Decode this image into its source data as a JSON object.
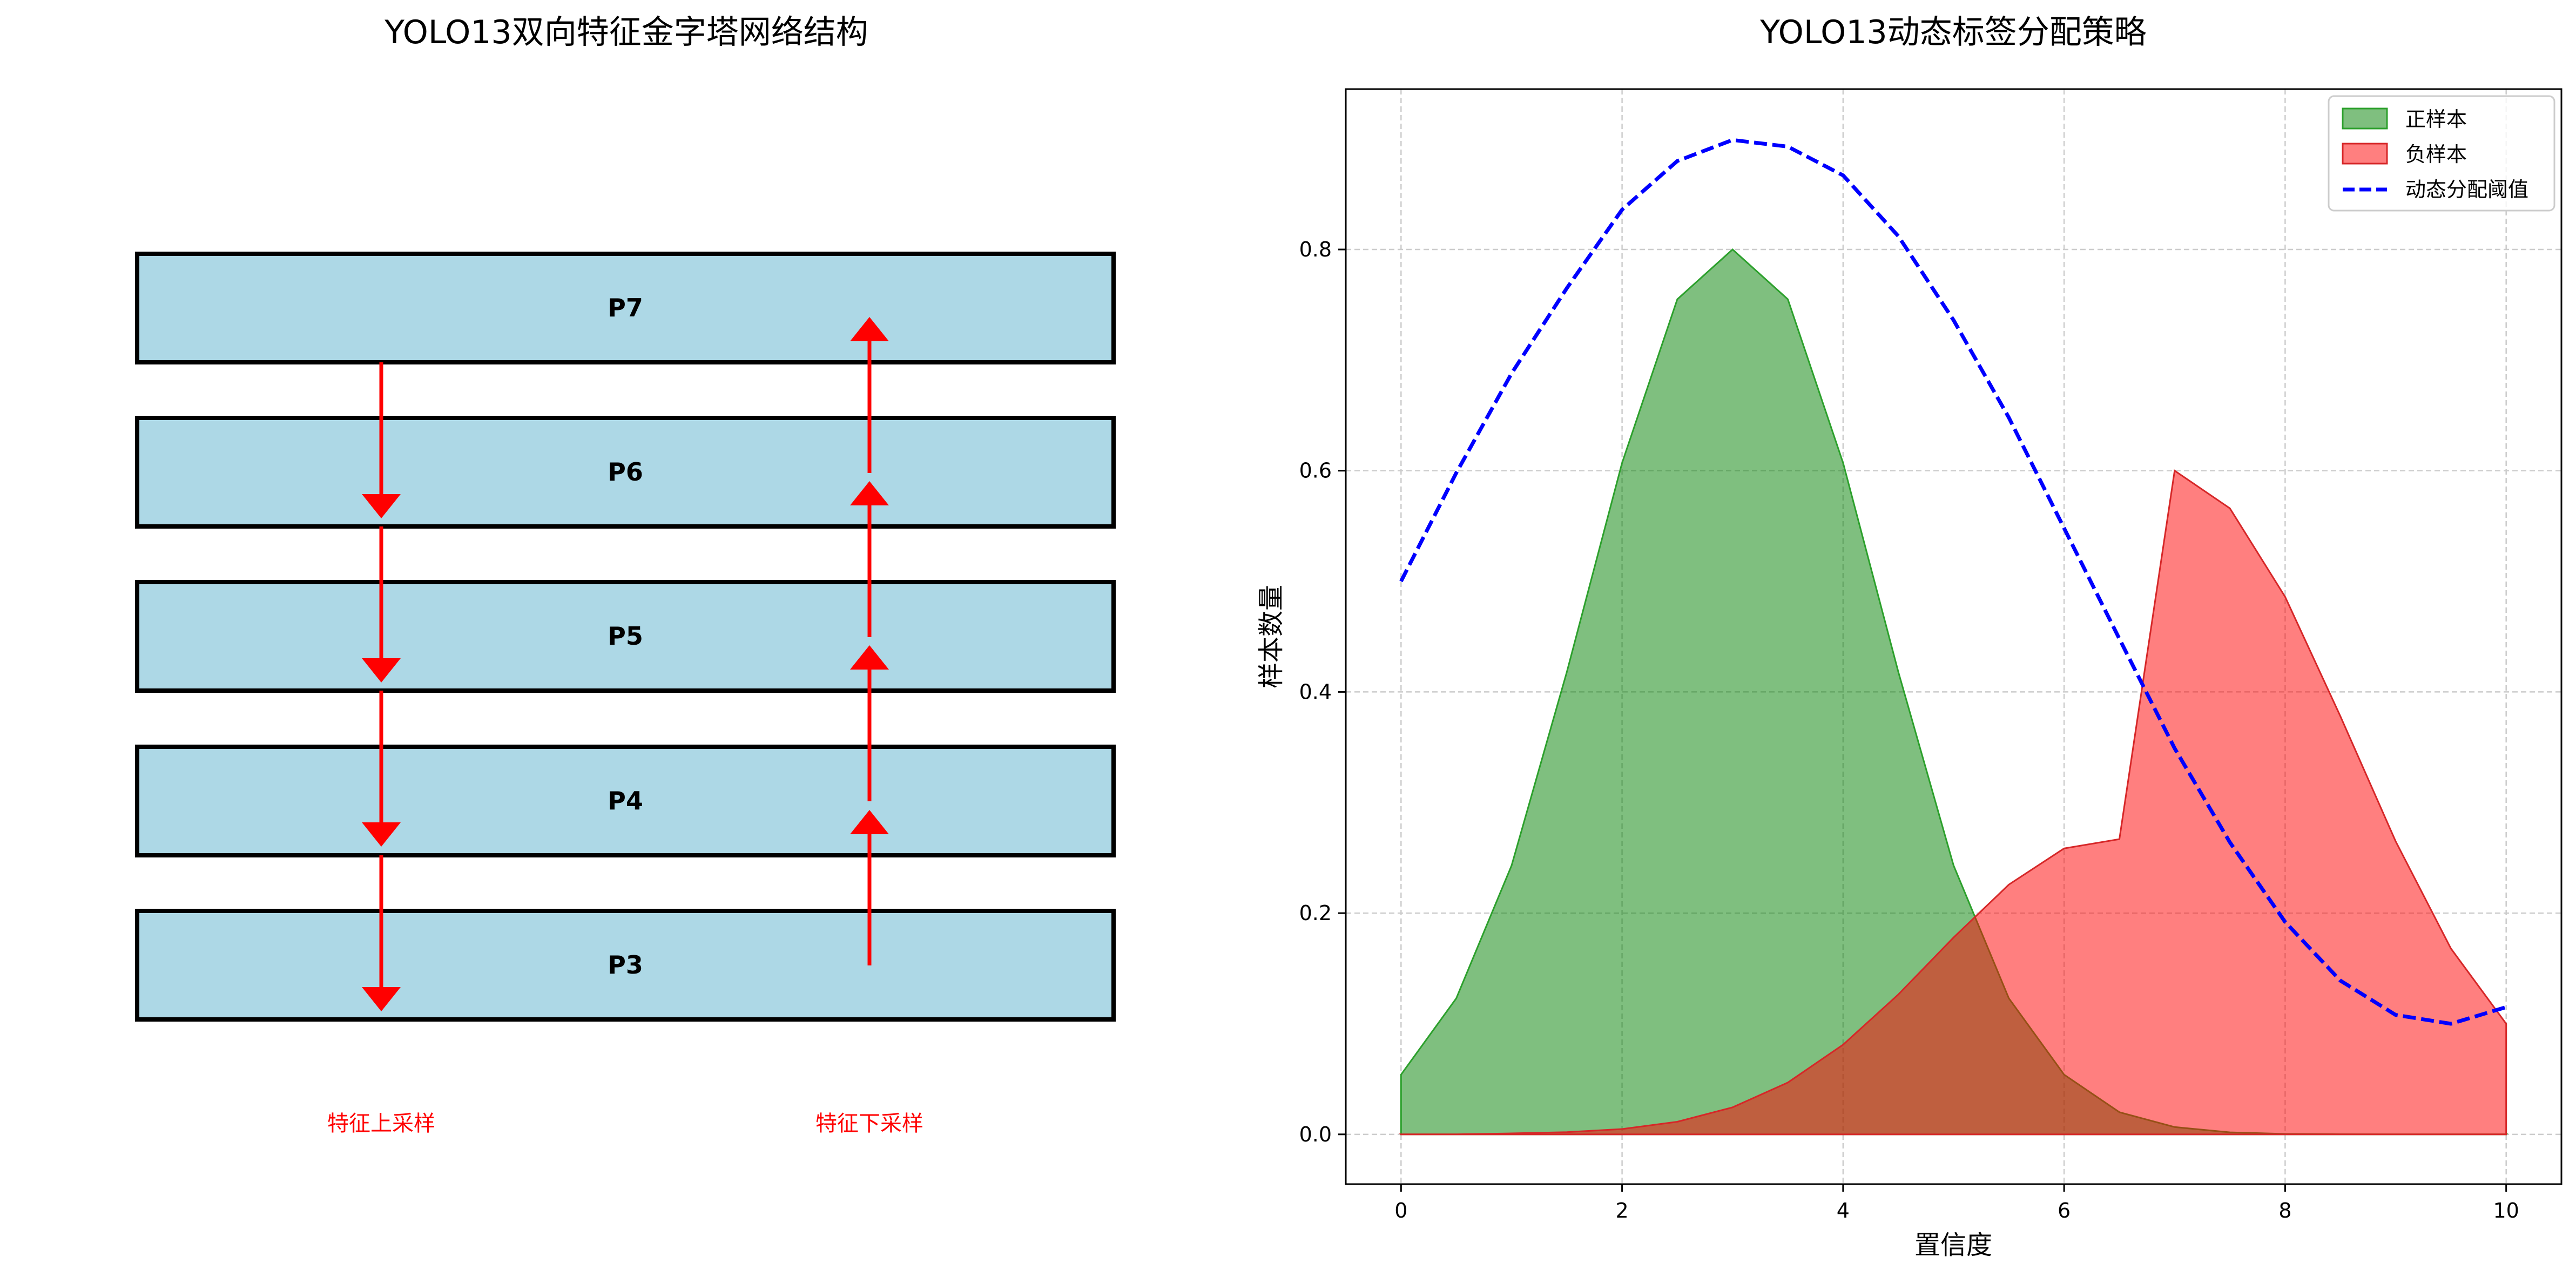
{
  "left_panel": {
    "title": "YOLO13双向特征金字塔网络结构",
    "layers": [
      "P7",
      "P6",
      "P5",
      "P4",
      "P3"
    ],
    "upsample_label": "特征上采样",
    "downsample_label": "特征下采样",
    "colors": {
      "box_fill": "#add8e6",
      "box_stroke": "#000000",
      "arrow": "#ff0000"
    }
  },
  "chart_data": {
    "type": "area",
    "title": "YOLO13动态标签分配策略",
    "xlabel": "置信度",
    "ylabel": "样本数量",
    "xlim": [
      -0.5,
      10.5
    ],
    "ylim": [
      -0.045,
      0.945
    ],
    "xticks": [
      0,
      2,
      4,
      6,
      8,
      10
    ],
    "yticks": [
      0.0,
      0.2,
      0.4,
      0.6,
      0.8
    ],
    "grid": true,
    "legend_position": "top-right",
    "series": [
      {
        "name": "正样本",
        "kind": "area",
        "color": "#2ca02c",
        "fill_color": "#008000",
        "opacity": 0.5,
        "x": [
          0,
          0.5,
          1,
          1.5,
          2,
          2.5,
          3,
          3.5,
          4,
          4.5,
          5,
          5.5,
          6,
          6.5,
          7,
          7.5,
          8,
          8.5,
          9,
          9.5,
          10
        ],
        "y": [
          0.054,
          0.123,
          0.243,
          0.418,
          0.607,
          0.755,
          0.8,
          0.755,
          0.607,
          0.418,
          0.243,
          0.123,
          0.054,
          0.02,
          0.0066,
          0.0018,
          0.0004,
          0.0001,
          0.0,
          0.0,
          0.0
        ]
      },
      {
        "name": "负样本",
        "kind": "area",
        "color": "#d62728",
        "fill_color": "#ff0000",
        "opacity": 0.5,
        "x": [
          0,
          0.5,
          1,
          1.5,
          2,
          2.5,
          3,
          3.5,
          4,
          4.5,
          5,
          5.5,
          6,
          6.5,
          7,
          7.5,
          8,
          8.5,
          9,
          9.5,
          10
        ],
        "y": [
          0.0,
          0.0,
          0.0009,
          0.002,
          0.0048,
          0.0114,
          0.0244,
          0.0468,
          0.0811,
          0.1265,
          0.178,
          0.2258,
          0.2585,
          0.2669,
          0.6,
          0.566,
          0.486,
          0.378,
          0.265,
          0.168,
          0.1
        ]
      },
      {
        "name": "动态分配阈值",
        "kind": "line",
        "style": "dashed",
        "color": "#0000ff",
        "x": [
          0,
          0.5,
          1,
          1.5,
          2,
          2.5,
          3,
          3.5,
          4,
          4.5,
          5,
          5.5,
          6,
          6.5,
          7,
          7.5,
          8,
          8.5,
          9,
          9.5,
          10
        ],
        "y": [
          0.5,
          0.598,
          0.688,
          0.765,
          0.836,
          0.88,
          0.899,
          0.893,
          0.867,
          0.812,
          0.736,
          0.648,
          0.548,
          0.448,
          0.349,
          0.264,
          0.192,
          0.139,
          0.108,
          0.1,
          0.115
        ]
      }
    ]
  }
}
